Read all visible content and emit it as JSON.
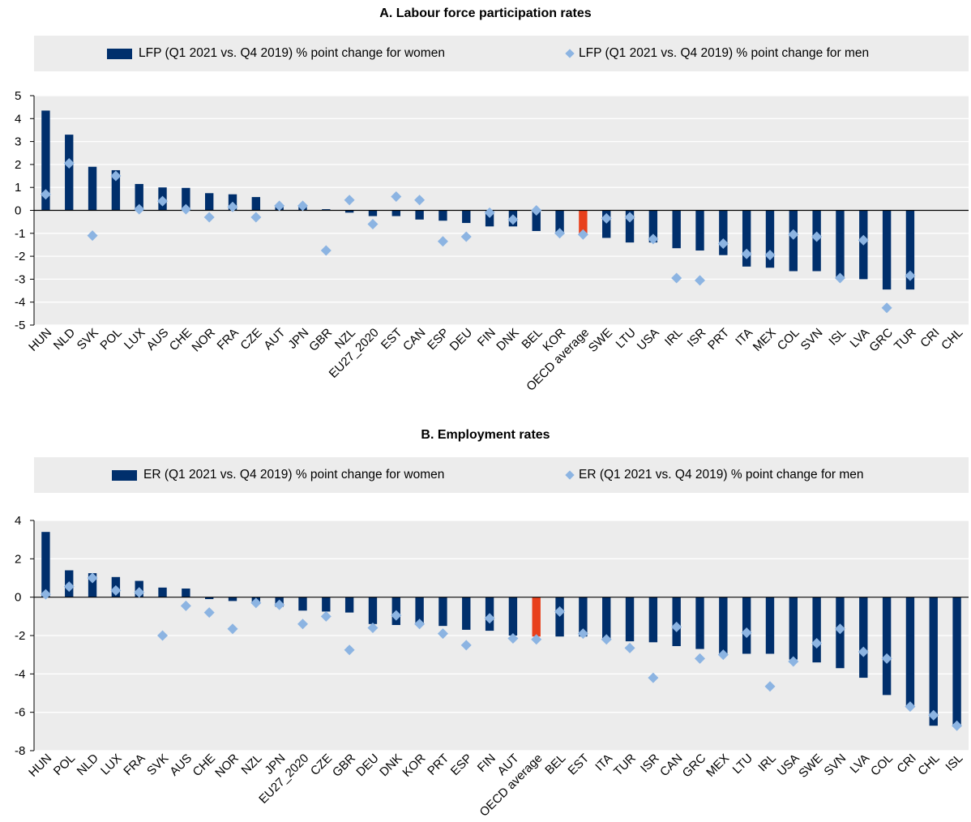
{
  "chart_data": [
    {
      "type": "bar",
      "title": "A. Labour force participation rates",
      "ylim": [
        -5,
        5
      ],
      "yticks": [
        5,
        4,
        3,
        2,
        1,
        0,
        -1,
        -2,
        -3,
        -4,
        -5
      ],
      "grid": true,
      "legend_position": "top",
      "categories": [
        "HUN",
        "NLD",
        "SVK",
        "POL",
        "LUX",
        "AUS",
        "CHE",
        "NOR",
        "FRA",
        "CZE",
        "AUT",
        "JPN",
        "GBR",
        "NZL",
        "EU27_2020",
        "EST",
        "CAN",
        "ESP",
        "DEU",
        "FIN",
        "DNK",
        "BEL",
        "KOR",
        "OECD average",
        "SWE",
        "LTU",
        "USA",
        "IRL",
        "ISR",
        "PRT",
        "ITA",
        "MEX",
        "COL",
        "SVN",
        "ISL",
        "LVA",
        "GRC",
        "TUR",
        "CRI",
        "CHL"
      ],
      "highlight_category": "OECD average",
      "highlight_color": "#e8401c",
      "series": [
        {
          "name": "LFP (Q1 2021 vs. Q4 2019) % point change for women",
          "kind": "bar",
          "color": "#002f6c",
          "values": [
            4.35,
            3.3,
            1.9,
            1.75,
            1.15,
            1.0,
            0.98,
            0.75,
            0.7,
            0.58,
            0.15,
            0.15,
            0.05,
            -0.1,
            -0.25,
            -0.25,
            -0.4,
            -0.45,
            -0.55,
            -0.7,
            -0.7,
            -0.9,
            -1.0,
            -1.05,
            -1.2,
            -1.4,
            -1.4,
            -1.65,
            -1.75,
            -1.95,
            -2.45,
            -2.5,
            -2.65,
            -2.65,
            -2.95,
            -3.0,
            -3.45,
            -3.45,
            null,
            null
          ]
        },
        {
          "name": "LFP (Q1 2021 vs. Q4 2019) % point change for men",
          "kind": "diamond",
          "color": "#8cb4e2",
          "values": [
            0.7,
            2.05,
            -1.1,
            1.5,
            0.05,
            0.4,
            0.05,
            -0.3,
            0.15,
            -0.3,
            0.2,
            0.2,
            -1.75,
            0.45,
            -0.6,
            0.6,
            0.45,
            -1.35,
            -1.15,
            -0.1,
            -0.4,
            0.0,
            -1.0,
            -1.05,
            -0.35,
            -0.3,
            -1.25,
            -2.95,
            -3.05,
            -1.45,
            -1.9,
            -1.95,
            -1.05,
            -1.15,
            -2.95,
            -1.3,
            -4.25,
            -2.85,
            null,
            null
          ]
        }
      ]
    },
    {
      "type": "bar",
      "title": "B. Employment rates",
      "ylim": [
        -8,
        4
      ],
      "yticks": [
        4,
        2,
        0,
        -2,
        -4,
        -6,
        -8
      ],
      "grid": true,
      "legend_position": "top",
      "categories": [
        "HUN",
        "POL",
        "NLD",
        "LUX",
        "FRA",
        "SVK",
        "AUS",
        "CHE",
        "NOR",
        "NZL",
        "JPN",
        "EU27_2020",
        "CZE",
        "GBR",
        "DEU",
        "DNK",
        "KOR",
        "PRT",
        "ESP",
        "FIN",
        "AUT",
        "OECD average",
        "BEL",
        "EST",
        "ITA",
        "TUR",
        "ISR",
        "CAN",
        "GRC",
        "MEX",
        "LTU",
        "IRL",
        "USA",
        "SWE",
        "SVN",
        "LVA",
        "COL",
        "CRI",
        "CHL",
        "ISL"
      ],
      "highlight_category": "OECD average",
      "highlight_color": "#e8401c",
      "series": [
        {
          "name": "ER (Q1 2021 vs. Q4 2019) % point change for women",
          "kind": "bar",
          "color": "#002f6c",
          "values": [
            3.4,
            1.4,
            1.25,
            1.05,
            0.85,
            0.5,
            0.45,
            -0.1,
            -0.2,
            -0.3,
            -0.5,
            -0.7,
            -0.75,
            -0.8,
            -1.4,
            -1.45,
            -1.45,
            -1.5,
            -1.7,
            -1.75,
            -2.0,
            -2.05,
            -2.05,
            -2.05,
            -2.15,
            -2.3,
            -2.35,
            -2.55,
            -2.7,
            -2.95,
            -2.95,
            -2.95,
            -3.25,
            -3.4,
            -3.7,
            -4.2,
            -5.1,
            -5.75,
            -6.7,
            -6.65
          ]
        },
        {
          "name": "ER (Q1 2021 vs. Q4 2019) % point change for men",
          "kind": "diamond",
          "color": "#8cb4e2",
          "values": [
            0.15,
            0.55,
            1.0,
            0.35,
            0.25,
            -2.0,
            -0.45,
            -0.8,
            -1.65,
            -0.3,
            -0.4,
            -1.4,
            -1.0,
            -2.75,
            -1.6,
            -0.95,
            -1.4,
            -1.9,
            -2.5,
            -1.1,
            -2.15,
            -2.2,
            -0.75,
            -1.9,
            -2.2,
            -2.65,
            -4.2,
            -1.55,
            -3.2,
            -3.0,
            -1.85,
            -4.65,
            -3.35,
            -2.4,
            -1.65,
            -2.85,
            -3.2,
            -5.7,
            -6.15,
            -6.7
          ]
        }
      ]
    }
  ]
}
